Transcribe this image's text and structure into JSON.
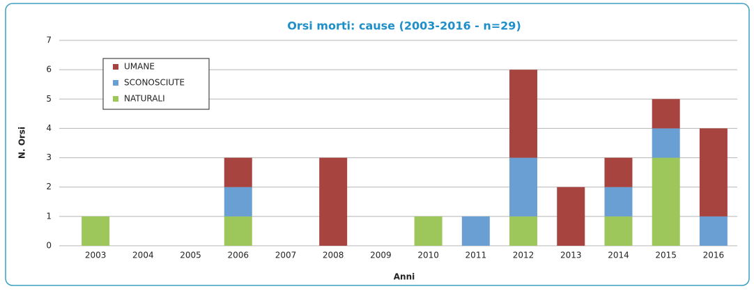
{
  "chart_data": {
    "type": "bar",
    "stacked": true,
    "title": "Orsi morti: cause (2003-2016 - n=29)",
    "x_label": "Anni",
    "y_label": "N. Orsi",
    "categories": [
      "2003",
      "2004",
      "2005",
      "2006",
      "2007",
      "2008",
      "2009",
      "2010",
      "2011",
      "2012",
      "2013",
      "2014",
      "2015",
      "2016"
    ],
    "series": [
      {
        "name": "NATURALI",
        "color": "#9dc75a",
        "values": [
          1,
          0,
          0,
          1,
          0,
          0,
          0,
          1,
          0,
          1,
          0,
          1,
          3,
          0
        ]
      },
      {
        "name": "SCONOSCIUTE",
        "color": "#6a9fd4",
        "values": [
          0,
          0,
          0,
          1,
          0,
          0,
          0,
          0,
          1,
          2,
          0,
          1,
          1,
          1
        ]
      },
      {
        "name": "UMANE",
        "color": "#a8443f",
        "values": [
          0,
          0,
          0,
          1,
          0,
          3,
          0,
          0,
          0,
          3,
          2,
          1,
          1,
          3
        ]
      }
    ],
    "ylim": [
      0,
      7
    ],
    "yticks": [
      0,
      1,
      2,
      3,
      4,
      5,
      6,
      7
    ],
    "grid": true,
    "legend": "upper left"
  }
}
